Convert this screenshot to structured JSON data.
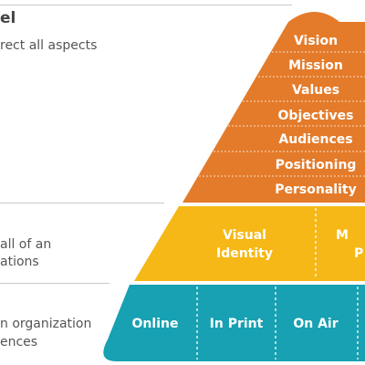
{
  "left_panel": {
    "title_fragment": "el",
    "line1": "rect all aspects",
    "line2a": "all of an",
    "line2b": "ations",
    "line3a": "n organization",
    "line3b": "ences"
  },
  "pyramid": {
    "top_tier": [
      "Vision",
      "Mission",
      "Values",
      "Objectives",
      "Audiences",
      "Positioning",
      "Personality"
    ],
    "middle_tier": {
      "cell1_line1": "Visual",
      "cell1_line2": "Identity",
      "cell2_line1": "M",
      "cell2_line2": "P"
    },
    "bottom_tier": [
      "Online",
      "In Print",
      "On Air"
    ]
  },
  "colors": {
    "orange": "#E47B2A",
    "yellow": "#F6B817",
    "teal": "#17A1B2",
    "text_gray": "#555555",
    "line_gray": "#C8C8C8"
  }
}
